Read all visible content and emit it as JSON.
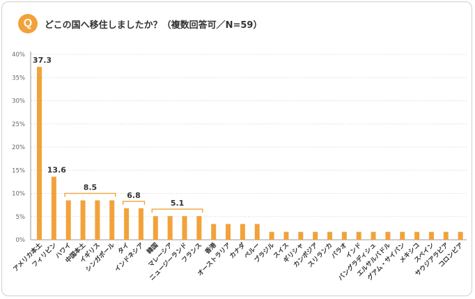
{
  "header": {
    "badge": "Q",
    "question": "どこの国へ移住しましたか？（複数回答可／N=59）"
  },
  "colors": {
    "bar": "#f2a23a",
    "bracket": "#f2a23a",
    "axis": "#999999",
    "grid": "#e0e0e0",
    "badge": "#f2a23a"
  },
  "chart_data": {
    "type": "bar",
    "categories": [
      "アメリカ本土",
      "フィリピン",
      "ハワイ",
      "中国本土",
      "イギリス",
      "シンガポール",
      "タイ",
      "インドネシア",
      "韓国",
      "マレーシア",
      "ニュージーランド",
      "フランス",
      "香港",
      "オーストラリア",
      "カナダ",
      "ペルー",
      "ブラジル",
      "スイス",
      "ギリシャ",
      "カンボジア",
      "スリランカ",
      "パラオ",
      "インド",
      "バングラディシュ",
      "エルサルバドル",
      "グアム・サイパン",
      "メキシコ",
      "スペイン",
      "サウジアラビア",
      "コロンビア"
    ],
    "values": [
      37.3,
      13.6,
      8.5,
      8.5,
      8.5,
      8.5,
      6.8,
      6.8,
      5.1,
      5.1,
      5.1,
      5.1,
      3.4,
      3.4,
      3.4,
      3.4,
      1.7,
      1.7,
      1.7,
      1.7,
      1.7,
      1.7,
      1.7,
      1.7,
      1.7,
      1.7,
      1.7,
      1.7,
      1.7,
      1.7
    ],
    "ylim": [
      0,
      40
    ],
    "yticks": [
      "0%",
      "5%",
      "10%",
      "15%",
      "20%",
      "25%",
      "30%",
      "35%",
      "40%"
    ],
    "grid": true,
    "annotations": [
      {
        "label": "37.3",
        "from": 0,
        "to": 0,
        "value": 37.3
      },
      {
        "label": "13.6",
        "from": 1,
        "to": 1,
        "value": 13.6
      },
      {
        "label": "8.5",
        "from": 2,
        "to": 5,
        "value": 8.5,
        "bracket": true
      },
      {
        "label": "6.8",
        "from": 6,
        "to": 7,
        "value": 6.8,
        "bracket": true
      },
      {
        "label": "5.1",
        "from": 8,
        "to": 11,
        "value": 5.1,
        "bracket": true
      }
    ]
  }
}
